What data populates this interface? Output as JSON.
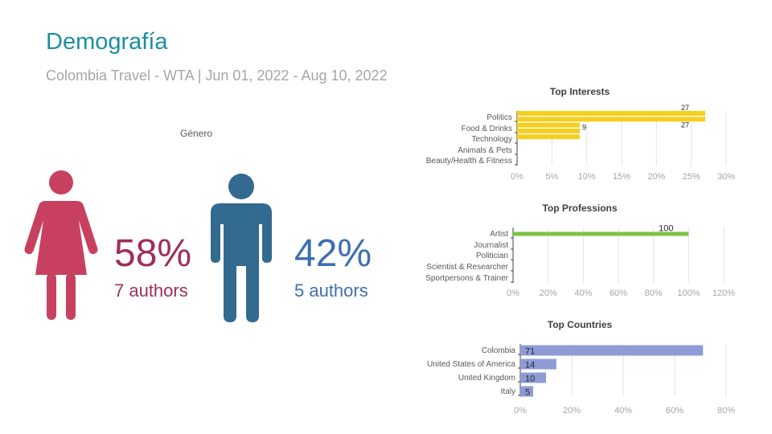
{
  "header": {
    "title": "Demografía",
    "subtitle": "Colombia Travel - WTA | Jun 01, 2022 - Aug 10, 2022"
  },
  "gender": {
    "label": "Género",
    "female": {
      "pct": "58%",
      "authors": "7 authors",
      "color": "#c8405f"
    },
    "male": {
      "pct": "42%",
      "authors": "5 authors",
      "color": "#336a8f"
    }
  },
  "chart_data": [
    {
      "type": "bar",
      "orientation": "horizontal",
      "title": "Top Interests",
      "categories": [
        "Politics",
        "Food & Drinks",
        "Technology",
        "Animals & Pets",
        "Beauty/Health & Fitness"
      ],
      "values": [
        27,
        27,
        9,
        9,
        9
      ],
      "data_labels": [
        "27",
        "27",
        "9",
        "",
        ""
      ],
      "xlim": [
        0,
        30
      ],
      "xticks": [
        "0%",
        "5%",
        "10%",
        "15%",
        "20%",
        "25%",
        "30%"
      ],
      "grid": true,
      "color": "#f5cf1f"
    },
    {
      "type": "bar",
      "orientation": "horizontal",
      "title": "Top Professions",
      "categories": [
        "Artist",
        "Journalist",
        "Politician",
        "Scientist & Researcher",
        "Sportpersons & Trainer"
      ],
      "values": [
        100,
        0,
        0,
        0,
        0
      ],
      "data_labels": [
        "100",
        "",
        "",
        "",
        ""
      ],
      "xlim": [
        0,
        120
      ],
      "xticks": [
        "0%",
        "20%",
        "40%",
        "60%",
        "80%",
        "100%",
        "120%"
      ],
      "grid": true,
      "color": "#7dc243"
    },
    {
      "type": "bar",
      "orientation": "horizontal",
      "title": "Top Countries",
      "categories": [
        "Colombia",
        "United States of America",
        "United Kingdom",
        "Italy"
      ],
      "values": [
        71,
        14,
        10,
        5
      ],
      "data_labels": [
        "71",
        "14",
        "10",
        "5"
      ],
      "xlim": [
        0,
        80
      ],
      "xticks": [
        "0%",
        "20%",
        "40%",
        "60%",
        "80%"
      ],
      "grid": true,
      "color": "#8f9bd6"
    }
  ]
}
